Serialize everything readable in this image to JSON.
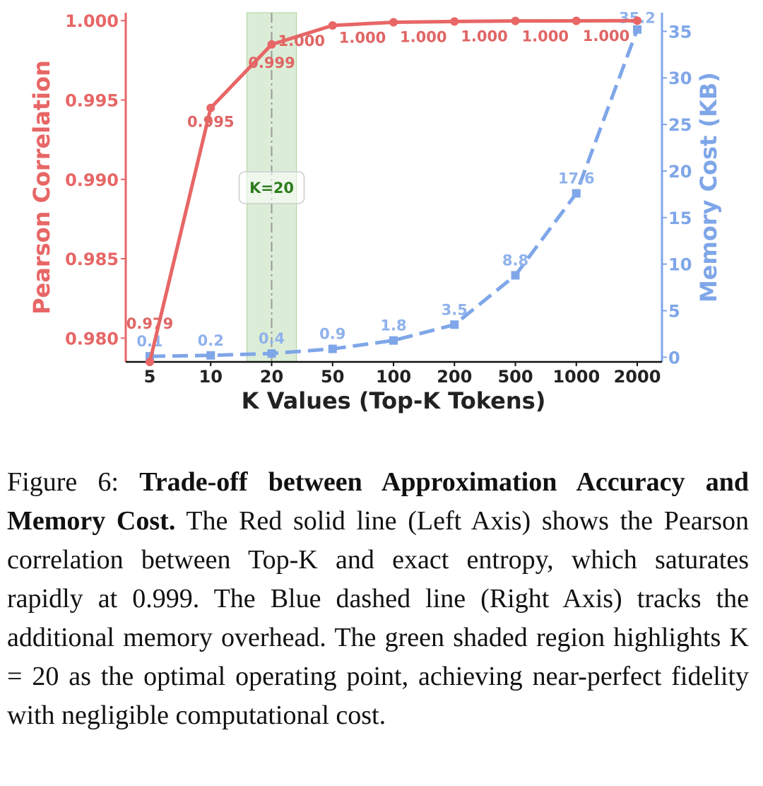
{
  "chart_data": {
    "type": "line",
    "x_axis": {
      "label": "K Values (Top-K Tokens)",
      "ticks": [
        "5",
        "10",
        "20",
        "50",
        "100",
        "200",
        "500",
        "1000",
        "2000"
      ],
      "scale": "categorical"
    },
    "y_left": {
      "label": "Pearson Correlation",
      "ylim": [
        0.9785,
        1.0005
      ],
      "ticks": [
        "0.980",
        "0.985",
        "0.990",
        "0.995",
        "1.000"
      ]
    },
    "y_right": {
      "label": "Memory Cost (KB)",
      "ylim": [
        -0.5,
        37
      ],
      "ticks": [
        "0",
        "5",
        "10",
        "15",
        "20",
        "25",
        "30",
        "35"
      ]
    },
    "series": [
      {
        "axis": "left",
        "style": "solid",
        "color": "#e86666",
        "marker": "circle",
        "x": [
          "5",
          "10",
          "20",
          "50",
          "100",
          "200",
          "500",
          "1000",
          "2000"
        ],
        "values": [
          0.9785,
          0.9945,
          0.9985,
          0.9997,
          0.9999,
          0.99995,
          0.99998,
          0.99999,
          1.0
        ],
        "point_labels": [
          "0.979",
          "0.995",
          "0.999",
          "1.000",
          "1.000",
          "1.000",
          "1.000",
          "1.000",
          "1.000"
        ]
      },
      {
        "axis": "right",
        "style": "dashed",
        "color": "#7fa6e8",
        "marker": "square",
        "x": [
          "5",
          "10",
          "20",
          "50",
          "100",
          "200",
          "500",
          "1000",
          "2000"
        ],
        "values": [
          0.1,
          0.2,
          0.4,
          0.9,
          1.8,
          3.5,
          8.8,
          17.6,
          35.2
        ],
        "point_labels": [
          "0.1",
          "0.2",
          "0.4",
          "0.9",
          "1.8",
          "3.5",
          "8.8",
          "17.6",
          "35.2"
        ]
      }
    ],
    "highlight": {
      "x": "20",
      "label": "K=20",
      "color": "#a8d29a"
    },
    "grid": false
  },
  "caption": {
    "prefix": "Figure 6: ",
    "bold": "Trade-off between Approximation Accuracy and Memory Cost.",
    "text": " The Red solid line (Left Axis) shows the Pearson correlation between Top-K and exact entropy, which saturates rapidly at 0.999. The Blue dashed line (Right Axis) tracks the additional memory overhead. The green shaded region highlights K = 20 as the optimal operating point, achieving near-perfect fidelity with negligible computational cost."
  }
}
